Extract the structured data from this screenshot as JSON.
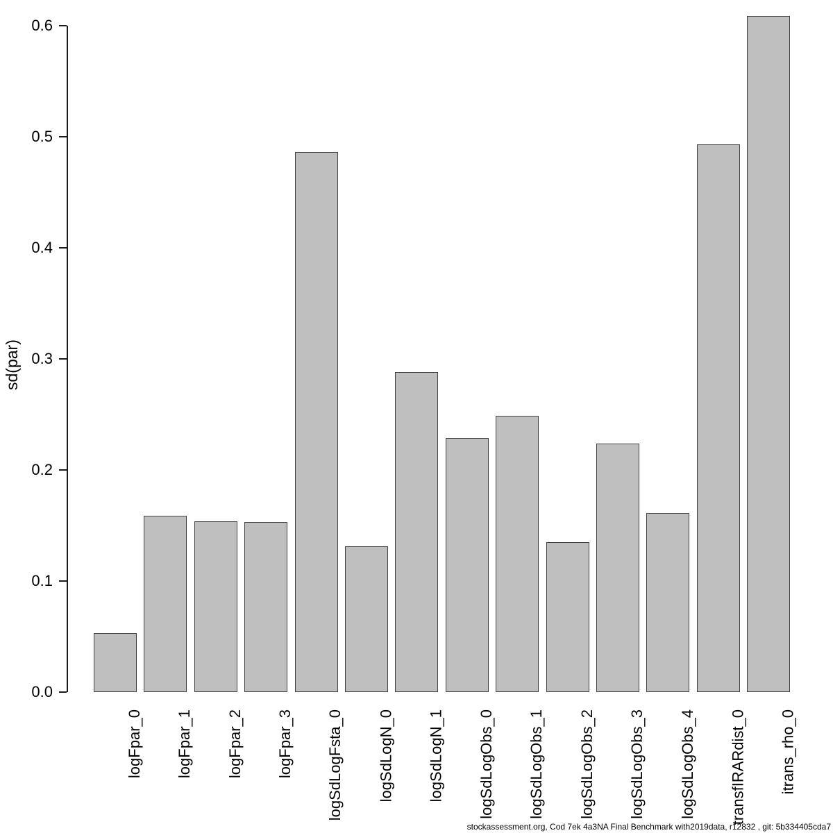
{
  "chart_data": {
    "type": "bar",
    "title": "",
    "xlabel": "",
    "ylabel": "sd(par)",
    "categories": [
      "logFpar_0",
      "logFpar_1",
      "logFpar_2",
      "logFpar_3",
      "logSdLogFsta_0",
      "logSdLogN_0",
      "logSdLogN_1",
      "logSdLogObs_0",
      "logSdLogObs_1",
      "logSdLogObs_2",
      "logSdLogObs_3",
      "logSdLogObs_4",
      "transfIRARdist_0",
      "itrans_rho_0"
    ],
    "values": [
      0.053,
      0.159,
      0.154,
      0.153,
      0.486,
      0.131,
      0.288,
      0.229,
      0.249,
      0.135,
      0.224,
      0.161,
      0.493,
      0.609
    ],
    "ylim": [
      0.0,
      0.6
    ],
    "yticks": [
      "0.0",
      "0.1",
      "0.2",
      "0.3",
      "0.4",
      "0.5",
      "0.6"
    ],
    "grid": false,
    "legend_position": "none",
    "bar_fill_color": "#bfbfbf",
    "bar_border_color": "#3f3f3f",
    "axis_color": "#1a1a1a"
  },
  "footer": {
    "text": "stockassessment.org, Cod 7ek 4a3NA Final Benchmark with2019data, r12832 , git: 5b334405cda7"
  }
}
